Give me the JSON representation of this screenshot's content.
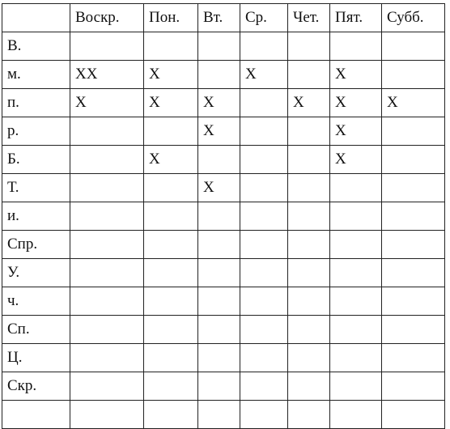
{
  "table": {
    "corner": "",
    "columns": [
      "Воскр.",
      "Пон.",
      "Вт.",
      "Ср.",
      "Чет.",
      "Пят.",
      "Субб."
    ],
    "rows": [
      {
        "label": "В.",
        "cells": [
          "",
          "",
          "",
          "",
          "",
          "",
          ""
        ]
      },
      {
        "label": "м.",
        "cells": [
          "XX",
          "X",
          "",
          "X",
          "",
          "X",
          ""
        ]
      },
      {
        "label": "п.",
        "cells": [
          "X",
          "X",
          "X",
          "",
          "X",
          "X",
          "X"
        ]
      },
      {
        "label": "р.",
        "cells": [
          "",
          "",
          "X",
          "",
          "",
          "X",
          ""
        ]
      },
      {
        "label": "Б.",
        "cells": [
          "",
          "X",
          "",
          "",
          "",
          "X",
          ""
        ]
      },
      {
        "label": "Т.",
        "cells": [
          "",
          "",
          "X",
          "",
          "",
          "",
          ""
        ]
      },
      {
        "label": "и.",
        "cells": [
          "",
          "",
          "",
          "",
          "",
          "",
          ""
        ]
      },
      {
        "label": "Спр.",
        "cells": [
          "",
          "",
          "",
          "",
          "",
          "",
          ""
        ]
      },
      {
        "label": "У.",
        "cells": [
          "",
          "",
          "",
          "",
          "",
          "",
          ""
        ]
      },
      {
        "label": "ч.",
        "cells": [
          "",
          "",
          "",
          "",
          "",
          "",
          ""
        ]
      },
      {
        "label": "Сп.",
        "cells": [
          "",
          "",
          "",
          "",
          "",
          "",
          ""
        ]
      },
      {
        "label": "Ц.",
        "cells": [
          "",
          "",
          "",
          "",
          "",
          "",
          ""
        ]
      },
      {
        "label": "Скр.",
        "cells": [
          "",
          "",
          "",
          "",
          "",
          "",
          ""
        ]
      },
      {
        "label": "",
        "cells": [
          "",
          "",
          "",
          "",
          "",
          "",
          ""
        ]
      }
    ]
  }
}
